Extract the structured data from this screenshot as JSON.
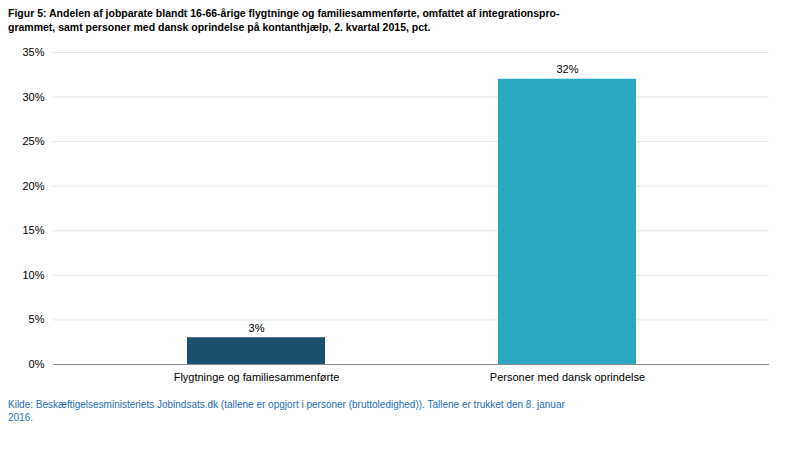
{
  "chart_data": {
    "type": "bar",
    "title": "Figur 5: Andelen af jobparate blandt 16-66-årige flygtninge og familiesammenførte, omfattet af integrationspro-\ngrammet, samt personer med dansk oprindelse på kontanthjælp, 2. kvartal 2015, pct.",
    "caption": "Kilde: Beskæftigelsesministeriets Jobindsats.dk (tallene er opgjort i personer (bruttoledighed)).  Tallene er trukket den 8. januar\n2016.",
    "categories": [
      "Flygtninge og familiesammenførte",
      "Personer med dansk oprindelse"
    ],
    "values": [
      3,
      32
    ],
    "value_labels": [
      "3%",
      "32%"
    ],
    "colors": [
      "#1a4f6e",
      "#29a8c0"
    ],
    "ylim": [
      0,
      35
    ],
    "yticks": [
      {
        "value": 0,
        "label": "0%"
      },
      {
        "value": 5,
        "label": "5%"
      },
      {
        "value": 10,
        "label": "10%"
      },
      {
        "value": 15,
        "label": "15%"
      },
      {
        "value": 20,
        "label": "20%"
      },
      {
        "value": 25,
        "label": "25%"
      },
      {
        "value": 30,
        "label": "30%"
      },
      {
        "value": 35,
        "label": "35%"
      }
    ],
    "grid": true,
    "data_labels": true
  }
}
